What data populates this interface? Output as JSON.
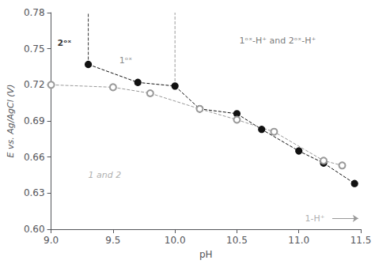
{
  "chart_data": {
    "type": "line",
    "xlabel": "pH",
    "ylabel": "E vs. Ag/AgCl (V)",
    "xlim": [
      9.0,
      11.5
    ],
    "ylim": [
      0.6,
      0.78
    ],
    "xticks": [
      {
        "value": 9.0,
        "label": "9.0"
      },
      9.5,
      {
        "value": 10.0,
        "label": "10.0"
      },
      10.5,
      {
        "value": 11.0,
        "label": "11.0"
      },
      11.5
    ],
    "yticks": [
      {
        "value": 0.6,
        "label": "0.60"
      },
      0.63,
      0.66,
      0.69,
      0.72,
      0.75,
      0.78
    ],
    "grid": false,
    "series": [
      {
        "x": [
          9.3,
          9.7,
          10.0,
          10.2,
          10.5,
          10.7,
          11.0,
          11.2,
          11.45
        ],
        "values": [
          0.737,
          0.722,
          0.719,
          0.7,
          0.696,
          0.683,
          0.665,
          0.655,
          0.638
        ],
        "color": "#111111",
        "marker": "circle",
        "line_style": "dashed"
      },
      {
        "x": [
          9.0,
          9.5,
          9.8,
          10.2,
          10.5,
          10.8,
          11.2,
          11.35
        ],
        "values": [
          0.72,
          0.718,
          0.713,
          0.7,
          0.691,
          0.681,
          0.657,
          0.653
        ],
        "color": "#999999",
        "marker": "emptyCircle",
        "line_style": "dashed"
      }
    ],
    "vlines": [
      {
        "x": 9.3,
        "y": [
          0.737,
          0.78
        ],
        "color": "#333333",
        "line_style": "dashed"
      },
      {
        "x": 10.0,
        "y": [
          0.719,
          0.78
        ],
        "color": "#999999",
        "line_style": "dashed"
      }
    ],
    "arrows": [
      {
        "x": [
          11.27,
          11.48
        ],
        "y": [
          0.609,
          0.609
        ],
        "color": "#999999"
      }
    ],
    "annotations": [
      {
        "text": "2ᵒˣ",
        "x": 9.05,
        "y": 0.755,
        "color": "#000000"
      },
      {
        "text": "1ᵒˣ",
        "x": 9.55,
        "y": 0.74,
        "color": "#666666"
      },
      {
        "text": "1 and 2",
        "x": 9.3,
        "y": 0.645,
        "color": "#999999"
      },
      {
        "text": "1ᵒˣ-H⁺ and 2ᵒˣ-H⁺",
        "x": 10.52,
        "y": 0.757,
        "color": "#555555"
      },
      {
        "text": "1-H⁺",
        "x": 11.05,
        "y": 0.609,
        "color": "#999999"
      }
    ]
  }
}
